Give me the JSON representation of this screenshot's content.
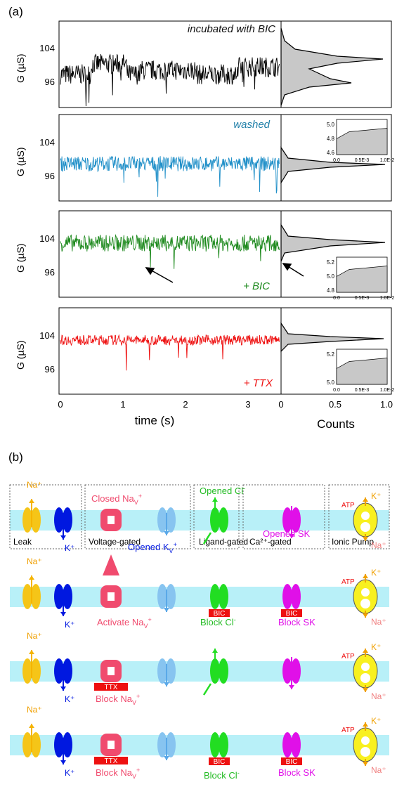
{
  "panel_a": {
    "label": "(a)",
    "y_axis_label": "G (µS)",
    "y_ticks": [
      "104",
      "96"
    ],
    "x_axis_label": "time (s)",
    "x_ticks": [
      "0",
      "1",
      "2",
      "3"
    ],
    "hist_axis_label": "Counts",
    "hist_ticks": [
      "0",
      "0.5",
      "1.0"
    ],
    "traces": [
      {
        "label": "incubated with BIC",
        "color": "#000000",
        "base": 98.5,
        "noise": 1.2
      },
      {
        "label": "washed",
        "color": "#1f8fc8",
        "base": 99.5,
        "noise": 0.9
      },
      {
        "label": "+ BIC",
        "color": "#1e8a1e",
        "base": 103.5,
        "noise": 1.0
      },
      {
        "label": "+ TTX",
        "color": "#ee1111",
        "base": 103.5,
        "noise": 0.6
      }
    ],
    "insets": [
      {
        "panel": 2,
        "y_ticks": [
          "5.0",
          "4.8",
          "4.6"
        ],
        "x_ticks": [
          "0.0",
          "0.5E-3",
          "1.0E-2"
        ]
      },
      {
        "panel": 3,
        "y_ticks": [
          "5.2",
          "5.0",
          "4.8"
        ],
        "x_ticks": [
          "0.0",
          "0.5E-3",
          "1.0E-2"
        ]
      },
      {
        "panel": 4,
        "y_ticks": [
          "5.2",
          "5.0"
        ],
        "x_ticks": [
          "0.0",
          "0.5E-3",
          "1.0E-2"
        ]
      }
    ]
  },
  "panel_b": {
    "label": "(b)",
    "channel_types": [
      "Leak",
      "Voltage-gated",
      "Ligand-gated",
      "Ca²⁺-gated",
      "Ionic Pump"
    ],
    "ions": {
      "na": "Na⁺",
      "k": "K⁺",
      "atp": "ATP"
    },
    "row1": {
      "closed_nav": "Closed Na",
      "opened_kv": "Opened K",
      "opened_cl": "Opened Cl",
      "opened_sk": "Opened SK"
    },
    "row2": {
      "activate_nav": "Activate Na",
      "block_cl": "Block Cl",
      "block_sk": "Block SK"
    },
    "row3": {
      "block_nav": "Block Na"
    },
    "row4": {
      "block_nav": "Block Na",
      "block_cl": "Block Cl",
      "block_sk": "Block SK"
    },
    "blockers": {
      "bic": "BIC",
      "ttx": "TTX"
    },
    "colors": {
      "leak": "#f5c518",
      "k": "#0018e0",
      "nav": "#f04b6e",
      "kv": "#87c4f0",
      "cl": "#22dd22",
      "sk": "#e010e8",
      "pump": "#f8f020",
      "membrane": "#b8f0f8",
      "blocker": "#ee1111"
    }
  }
}
